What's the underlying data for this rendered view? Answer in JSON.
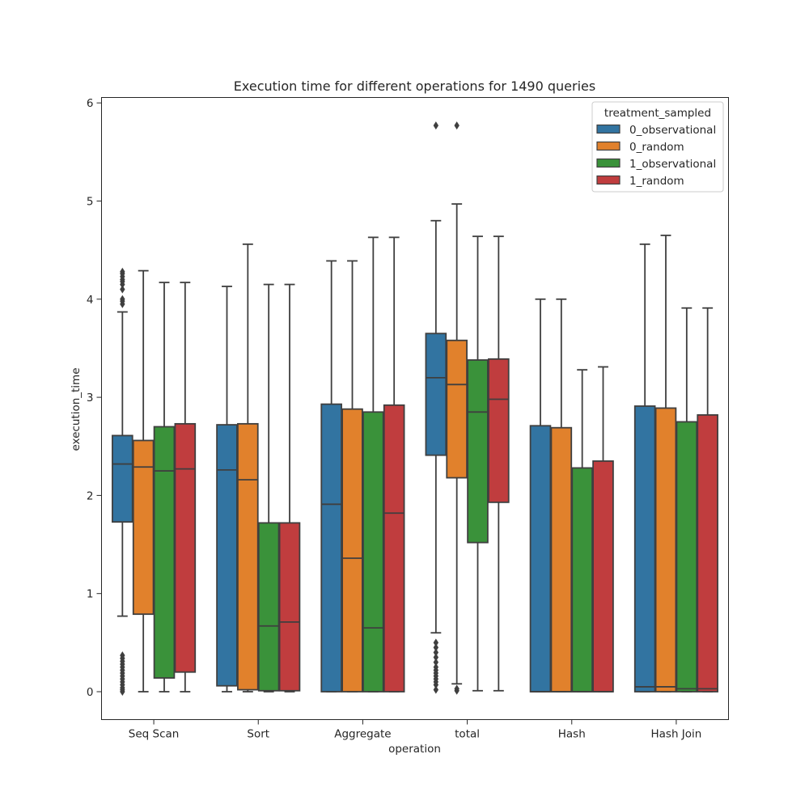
{
  "chart_data": {
    "type": "boxplot",
    "title": "Execution time for different operations for 1490 queries",
    "xlabel": "operation",
    "ylabel": "execution_time",
    "ylim": [
      -0.28,
      6.1
    ],
    "yticks": [
      0,
      1,
      2,
      3,
      4,
      5,
      6
    ],
    "categories": [
      "Seq Scan",
      "Sort",
      "Aggregate",
      "total",
      "Hash",
      "Hash Join"
    ],
    "legend": {
      "title": "treatment_sampled",
      "position": "top-right",
      "entries": [
        "0_observational",
        "0_random",
        "1_observational",
        "1_random"
      ]
    },
    "colors": {
      "0_observational": "#3274a1",
      "0_random": "#e1812c",
      "1_observational": "#3a923a",
      "1_random": "#c03d3e",
      "line": "#3f3f3f"
    },
    "series": [
      {
        "name": "0_observational",
        "boxes": [
          {
            "category": "Seq Scan",
            "whislo": 0.77,
            "q1": 1.73,
            "med": 2.32,
            "q3": 2.61,
            "whishi": 3.87,
            "fliers": [
              3.95,
              3.98,
              4.0,
              4.1,
              4.15,
              4.18,
              4.2,
              4.23,
              4.26,
              4.28,
              0.0,
              0.02,
              0.04,
              0.07,
              0.1,
              0.13,
              0.16,
              0.19,
              0.22,
              0.25,
              0.28,
              0.31,
              0.34,
              0.37
            ]
          },
          {
            "category": "Sort",
            "whislo": 0.0,
            "q1": 0.06,
            "med": 2.26,
            "q3": 2.72,
            "whishi": 4.13,
            "fliers": []
          },
          {
            "category": "Aggregate",
            "whislo": 0.0,
            "q1": 0.0,
            "med": 1.91,
            "q3": 2.93,
            "whishi": 4.39,
            "fliers": []
          },
          {
            "category": "total",
            "whislo": 0.6,
            "q1": 2.41,
            "med": 3.2,
            "q3": 3.65,
            "whishi": 4.8,
            "fliers": [
              5.77,
              0.02,
              0.07,
              0.1,
              0.13,
              0.16,
              0.19,
              0.22,
              0.25,
              0.3,
              0.35,
              0.4,
              0.45,
              0.5
            ]
          },
          {
            "category": "Hash",
            "whislo": 0.0,
            "q1": 0.0,
            "med": 0.0,
            "q3": 2.71,
            "whishi": 4.0,
            "fliers": []
          },
          {
            "category": "Hash Join",
            "whislo": 0.0,
            "q1": 0.0,
            "med": 0.05,
            "q3": 2.91,
            "whishi": 4.56,
            "fliers": []
          }
        ]
      },
      {
        "name": "0_random",
        "boxes": [
          {
            "category": "Seq Scan",
            "whislo": 0.0,
            "q1": 0.79,
            "med": 2.29,
            "q3": 2.56,
            "whishi": 4.29,
            "fliers": []
          },
          {
            "category": "Sort",
            "whislo": 0.0,
            "q1": 0.02,
            "med": 2.16,
            "q3": 2.73,
            "whishi": 4.56,
            "fliers": []
          },
          {
            "category": "Aggregate",
            "whislo": 0.0,
            "q1": 0.0,
            "med": 1.36,
            "q3": 2.88,
            "whishi": 4.39,
            "fliers": []
          },
          {
            "category": "total",
            "whislo": 0.08,
            "q1": 2.18,
            "med": 3.13,
            "q3": 3.58,
            "whishi": 4.97,
            "fliers": [
              5.77,
              0.01,
              0.03
            ]
          },
          {
            "category": "Hash",
            "whislo": 0.0,
            "q1": 0.0,
            "med": 0.0,
            "q3": 2.69,
            "whishi": 4.0,
            "fliers": []
          },
          {
            "category": "Hash Join",
            "whislo": 0.0,
            "q1": 0.0,
            "med": 0.05,
            "q3": 2.89,
            "whishi": 4.65,
            "fliers": []
          }
        ]
      },
      {
        "name": "1_observational",
        "boxes": [
          {
            "category": "Seq Scan",
            "whislo": 0.0,
            "q1": 0.14,
            "med": 2.25,
            "q3": 2.7,
            "whishi": 4.17,
            "fliers": []
          },
          {
            "category": "Sort",
            "whislo": 0.0,
            "q1": 0.01,
            "med": 0.67,
            "q3": 1.72,
            "whishi": 4.15,
            "fliers": []
          },
          {
            "category": "Aggregate",
            "whislo": 0.0,
            "q1": 0.0,
            "med": 0.65,
            "q3": 2.85,
            "whishi": 4.63,
            "fliers": []
          },
          {
            "category": "total",
            "whislo": 0.01,
            "q1": 1.52,
            "med": 2.85,
            "q3": 3.38,
            "whishi": 4.64,
            "fliers": []
          },
          {
            "category": "Hash",
            "whislo": 0.0,
            "q1": 0.0,
            "med": 0.0,
            "q3": 2.28,
            "whishi": 3.28,
            "fliers": []
          },
          {
            "category": "Hash Join",
            "whislo": 0.0,
            "q1": 0.0,
            "med": 0.03,
            "q3": 2.75,
            "whishi": 3.91,
            "fliers": []
          }
        ]
      },
      {
        "name": "1_random",
        "boxes": [
          {
            "category": "Seq Scan",
            "whislo": 0.0,
            "q1": 0.2,
            "med": 2.27,
            "q3": 2.73,
            "whishi": 4.17,
            "fliers": []
          },
          {
            "category": "Sort",
            "whislo": 0.0,
            "q1": 0.01,
            "med": 0.71,
            "q3": 1.72,
            "whishi": 4.15,
            "fliers": []
          },
          {
            "category": "Aggregate",
            "whislo": 0.0,
            "q1": 0.0,
            "med": 1.82,
            "q3": 2.92,
            "whishi": 4.63,
            "fliers": []
          },
          {
            "category": "total",
            "whislo": 0.01,
            "q1": 1.93,
            "med": 2.98,
            "q3": 3.39,
            "whishi": 4.64,
            "fliers": []
          },
          {
            "category": "Hash",
            "whislo": 0.0,
            "q1": 0.0,
            "med": 0.0,
            "q3": 2.35,
            "whishi": 3.31,
            "fliers": []
          },
          {
            "category": "Hash Join",
            "whislo": 0.0,
            "q1": 0.0,
            "med": 0.03,
            "q3": 2.82,
            "whishi": 3.91,
            "fliers": []
          }
        ]
      }
    ]
  }
}
